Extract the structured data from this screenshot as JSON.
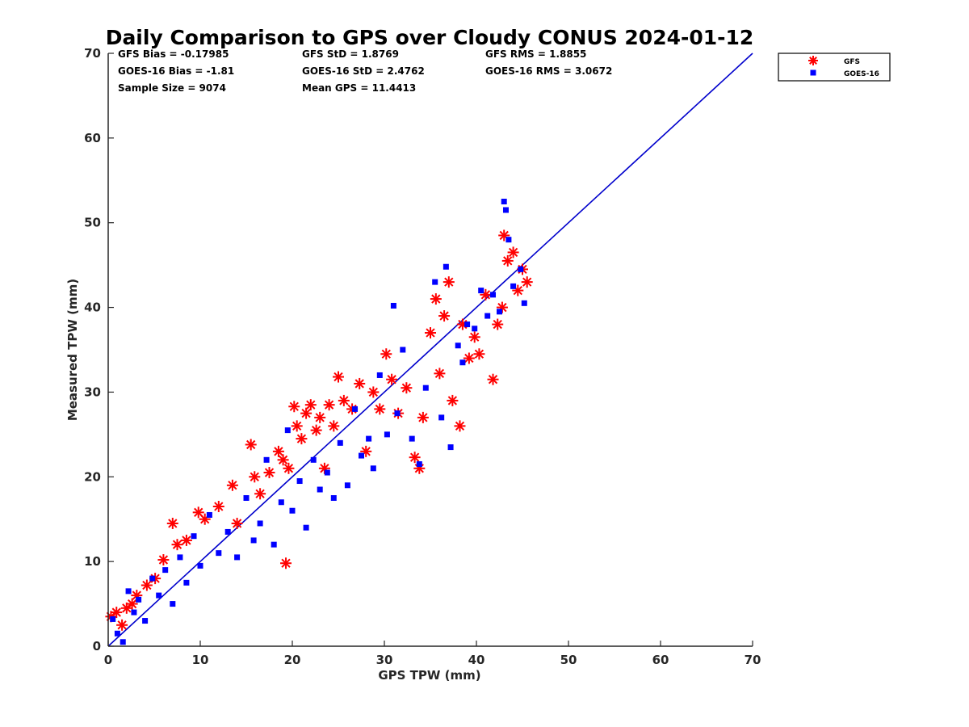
{
  "chart_data": {
    "type": "scatter",
    "title": "Daily Comparison to GPS over Cloudy CONUS 2024-01-12",
    "xlabel": "GPS TPW (mm)",
    "ylabel": "Measured TPW (mm)",
    "xlim": [
      0,
      70
    ],
    "ylim": [
      0,
      70
    ],
    "xticks": [
      "0",
      "10",
      "20",
      "30",
      "40",
      "50",
      "60",
      "70"
    ],
    "yticks": [
      "0",
      "10",
      "20",
      "30",
      "40",
      "50",
      "60",
      "70"
    ],
    "grid": false,
    "legend_position": "outside-top-right",
    "stats": [
      "GFS Bias = -0.17985",
      "GFS StD = 1.8769",
      "GFS RMS = 1.8855",
      "GOES-16 Bias = -1.81",
      "GOES-16 StD = 2.4762",
      "GOES-16 RMS = 3.0672",
      "Sample Size = 9074",
      "Mean GPS = 11.4413"
    ],
    "reference_line": {
      "name": "1:1 line",
      "x": [
        0,
        70
      ],
      "y": [
        0,
        70
      ],
      "color": "#0000cc"
    },
    "series": [
      {
        "name": "GFS",
        "marker": "asterisk",
        "color": "#ff0000",
        "x": [
          0.3,
          0.9,
          1.5,
          2.0,
          2.6,
          3.1,
          4.2,
          5.1,
          6.0,
          7.0,
          7.5,
          8.5,
          9.8,
          10.5,
          12.0,
          13.5,
          14.0,
          15.5,
          15.9,
          16.5,
          17.5,
          18.5,
          19.0,
          19.3,
          19.6,
          20.2,
          20.5,
          21.0,
          21.5,
          22.0,
          22.6,
          23.0,
          23.5,
          24.0,
          24.5,
          25.0,
          25.6,
          26.5,
          27.3,
          28.0,
          28.8,
          29.5,
          30.2,
          30.8,
          31.5,
          32.4,
          33.3,
          33.8,
          34.2,
          35.0,
          35.6,
          36.0,
          36.5,
          37.0,
          37.4,
          38.2,
          38.5,
          39.2,
          39.8,
          40.3,
          41.0,
          41.8,
          42.3,
          42.8,
          43.0,
          43.4,
          44.0,
          44.5,
          45.0,
          45.5
        ],
        "y": [
          3.5,
          4.0,
          2.5,
          4.5,
          5.0,
          6.0,
          7.2,
          8.0,
          10.2,
          14.5,
          12.0,
          12.5,
          15.8,
          15.0,
          16.5,
          19.0,
          14.5,
          23.8,
          20.0,
          18.0,
          20.5,
          23.0,
          22.0,
          9.8,
          21.0,
          28.3,
          26.0,
          24.5,
          27.5,
          28.5,
          25.5,
          27.0,
          21.0,
          28.5,
          26.0,
          31.8,
          29.0,
          28.0,
          31.0,
          23.0,
          30.0,
          28.0,
          34.5,
          31.5,
          27.5,
          30.5,
          22.3,
          21.0,
          27.0,
          37.0,
          41.0,
          32.2,
          39.0,
          43.0,
          29.0,
          26.0,
          38.0,
          34.0,
          36.5,
          34.5,
          41.5,
          31.5,
          38.0,
          40.0,
          48.5,
          45.5,
          46.5,
          42.0,
          44.5,
          43.0
        ]
      },
      {
        "name": "GOES-16",
        "marker": "square",
        "color": "#0000ff",
        "x": [
          0.5,
          1.0,
          1.6,
          2.2,
          2.8,
          3.3,
          4.0,
          4.8,
          5.5,
          6.2,
          7.0,
          7.8,
          8.5,
          9.3,
          10.0,
          11.0,
          12.0,
          13.0,
          14.0,
          15.0,
          15.8,
          16.5,
          17.2,
          18.0,
          18.8,
          19.5,
          20.0,
          20.8,
          21.5,
          22.3,
          23.0,
          23.8,
          24.5,
          25.2,
          26.0,
          26.8,
          27.5,
          28.3,
          28.8,
          29.5,
          30.3,
          31.0,
          31.4,
          32.0,
          33.0,
          33.8,
          34.5,
          35.5,
          36.2,
          36.7,
          37.2,
          38.0,
          38.5,
          39.0,
          39.8,
          40.5,
          41.2,
          41.8,
          42.5,
          43.0,
          43.2,
          43.5,
          44.0,
          44.8,
          45.2
        ],
        "y": [
          3.2,
          1.5,
          0.5,
          6.5,
          4.0,
          5.5,
          3.0,
          8.0,
          6.0,
          9.0,
          5.0,
          10.5,
          7.5,
          13.0,
          9.5,
          15.5,
          11.0,
          13.5,
          10.5,
          17.5,
          12.5,
          14.5,
          22.0,
          12.0,
          17.0,
          25.5,
          16.0,
          19.5,
          14.0,
          22.0,
          18.5,
          20.5,
          17.5,
          24.0,
          19.0,
          28.0,
          22.5,
          24.5,
          21.0,
          32.0,
          25.0,
          40.2,
          27.5,
          35.0,
          24.5,
          21.5,
          30.5,
          43.0,
          27.0,
          44.8,
          23.5,
          35.5,
          33.5,
          38.0,
          37.5,
          42.0,
          39.0,
          41.5,
          39.5,
          52.5,
          51.5,
          48.0,
          42.5,
          44.5,
          40.5
        ]
      }
    ]
  }
}
